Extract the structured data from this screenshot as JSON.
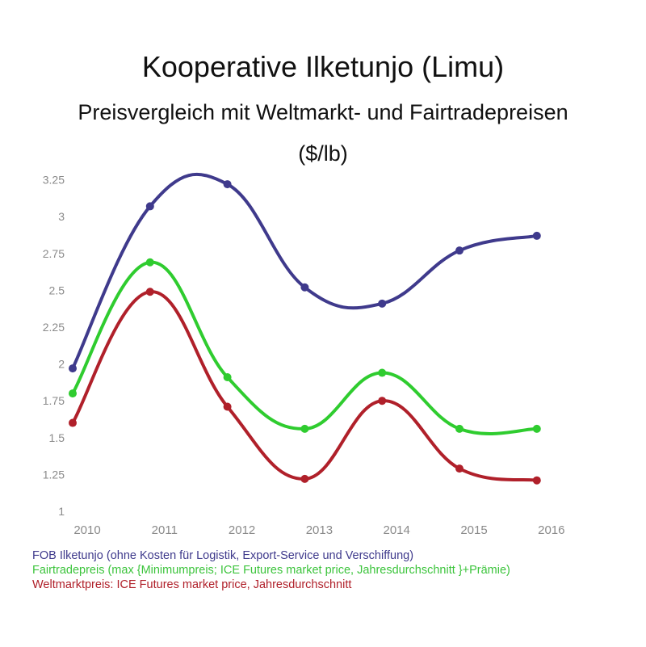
{
  "title": "Kooperative Ilketunjo (Limu)",
  "subtitle": "Preisvergleich mit Weltmarkt- und Fairtradepreisen",
  "unit": "($/lb)",
  "chart_data": {
    "type": "line",
    "title": "Kooperative Ilketunjo (Limu)",
    "subtitle": "Preisvergleich mit Weltmarkt- und Fairtradepreisen ($/lb)",
    "xlabel": "",
    "ylabel": "",
    "categories": [
      "2010",
      "2011",
      "2012",
      "2013",
      "2014",
      "2015",
      "2016"
    ],
    "y_ticks": [
      "1",
      "1.25",
      "1.5",
      "1.75",
      "2",
      "2.25",
      "2.5",
      "2.75",
      "3",
      "3.25"
    ],
    "ylim": [
      1,
      3.25
    ],
    "grid": false,
    "smooth": true,
    "legend_position": "bottom-left",
    "series": [
      {
        "name": "FOB Ilketunjo (ohne Kosten für Logistik, Export-Service und Verschiffung)",
        "color": "#3f3a8c",
        "values": [
          1.97,
          3.07,
          3.22,
          2.52,
          2.41,
          2.77,
          2.87
        ]
      },
      {
        "name": "Fairtradepreis (max {Minimumpreis; ICE Futures market price, Jahresdurchschnitt }+Prämie)",
        "color": "#2fcc2f",
        "values": [
          1.8,
          2.69,
          1.91,
          1.56,
          1.94,
          1.56,
          1.56
        ]
      },
      {
        "name": "Weltmarktpreis: ICE Futures market price, Jahresdurchschnitt",
        "color": "#b0202a",
        "values": [
          1.6,
          2.49,
          1.71,
          1.22,
          1.75,
          1.29,
          1.21
        ]
      }
    ]
  }
}
